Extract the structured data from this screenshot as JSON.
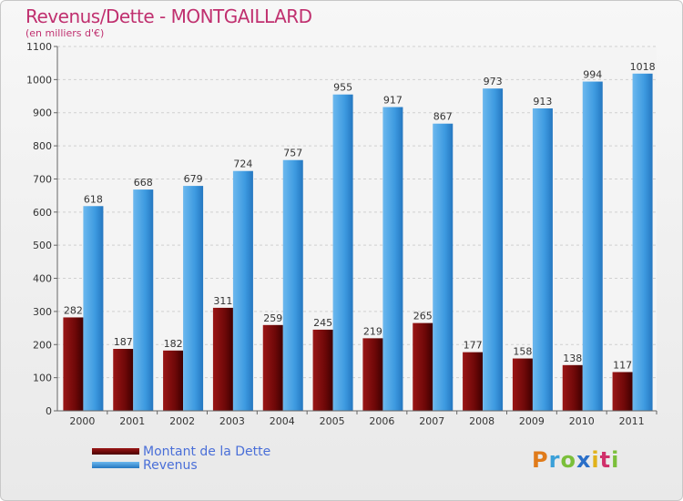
{
  "chart_data": {
    "type": "bar",
    "title": "Revenus/Dette - MONTGAILLARD",
    "subtitle": "(en milliers d'€)",
    "categories": [
      "2000",
      "2001",
      "2002",
      "2003",
      "2004",
      "2005",
      "2006",
      "2007",
      "2008",
      "2009",
      "2010",
      "2011"
    ],
    "series": [
      {
        "name": "Montant de la Dette",
        "color": "#7a0a0a",
        "values": [
          282,
          187,
          182,
          311,
          259,
          245,
          219,
          265,
          177,
          158,
          138,
          117
        ]
      },
      {
        "name": "Revenus",
        "color": "#3d9ae0",
        "values": [
          618,
          668,
          679,
          724,
          757,
          955,
          917,
          867,
          973,
          913,
          994,
          1018
        ]
      }
    ],
    "ylim": [
      0,
      1100
    ],
    "yticks": [
      0,
      100,
      200,
      300,
      400,
      500,
      600,
      700,
      800,
      900,
      1000,
      1100
    ],
    "grid": true,
    "legend_position": "bottom-left"
  },
  "logo": {
    "letters": [
      "P",
      "r",
      "o",
      "x",
      "i",
      "t",
      "i"
    ],
    "colors": [
      "#e07b1a",
      "#3ba0d8",
      "#7bbf3a",
      "#2a6fc8",
      "#e0b21a",
      "#d0306a",
      "#7bbf3a"
    ]
  }
}
